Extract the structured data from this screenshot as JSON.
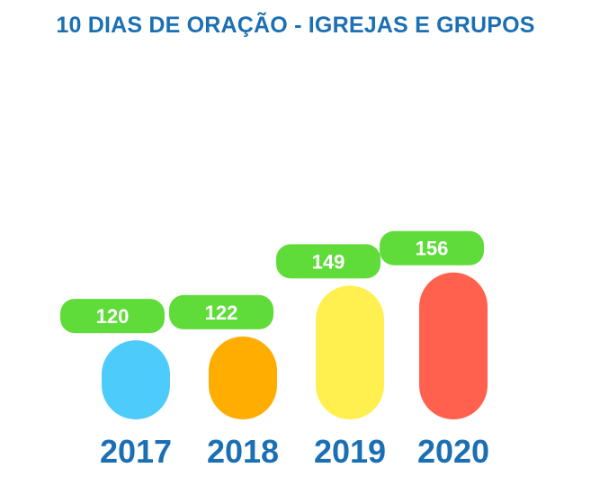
{
  "chart_data": {
    "type": "bar",
    "title": "10 DIAS DE ORAÇÃO - IGREJAS E GRUPOS",
    "categories": [
      "2017",
      "2018",
      "2019",
      "2020"
    ],
    "values": [
      120,
      122,
      149,
      156
    ],
    "bar_colors": [
      "#4dcbfa",
      "#ffad00",
      "#fff050",
      "#ff614e"
    ],
    "label_pill_color": "#5fdc3a",
    "label_text_color": "#ffffff",
    "category_label_color": "#1b6fb3",
    "title_color": "#1b6fb3",
    "xlabel": "",
    "ylabel": "",
    "grid": false,
    "legend": "none"
  }
}
